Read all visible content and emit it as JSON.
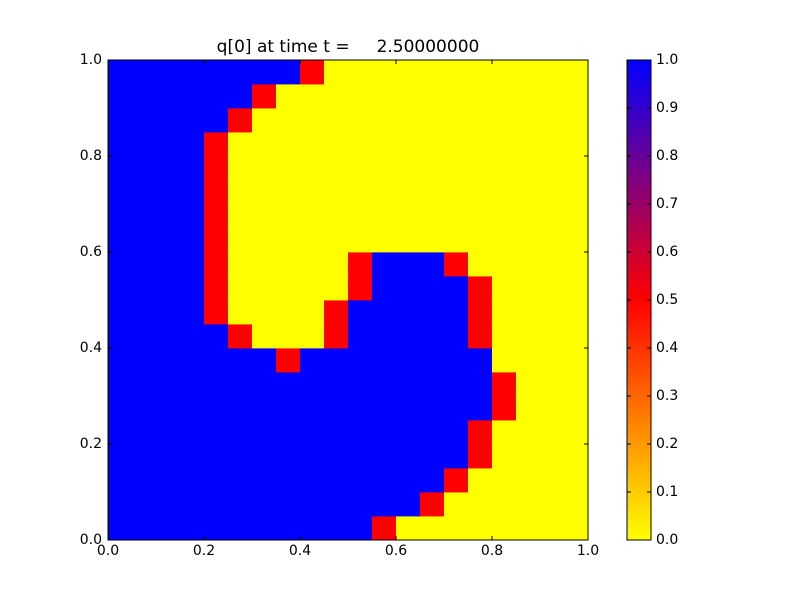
{
  "chart_data": {
    "type": "heatmap",
    "title": "q[0] at time t =     2.50000000",
    "xlim": [
      0,
      1
    ],
    "ylim": [
      0,
      1
    ],
    "xticks": [
      {
        "value": 0,
        "label": "0.0"
      },
      0.2,
      0.4,
      0.6,
      0.8,
      {
        "value": 1,
        "label": "1.0"
      }
    ],
    "yticks": [
      {
        "value": 0,
        "label": "0.0"
      },
      0.2,
      0.4,
      0.6,
      0.8,
      {
        "value": 1,
        "label": "1.0"
      }
    ],
    "clim": [
      0,
      1
    ],
    "colorbar_ticks": [
      {
        "value": 0,
        "label": "0.0"
      },
      0.1,
      0.2,
      0.3,
      0.4,
      0.5,
      0.6,
      0.7,
      0.8,
      0.9,
      {
        "value": 1,
        "label": "1.0"
      }
    ],
    "colormap": [
      {
        "value": 0,
        "color": "#ffff00"
      },
      {
        "value": 0.5,
        "color": "#ff0000"
      },
      {
        "value": 1,
        "color": "#0000ff"
      }
    ],
    "z": [
      [
        1,
        1,
        1,
        1,
        1,
        1,
        1,
        1,
        1,
        1,
        1,
        0.5,
        0,
        0,
        0,
        0,
        0,
        0,
        0,
        0
      ],
      [
        1,
        1,
        1,
        1,
        1,
        1,
        1,
        1,
        1,
        1,
        1,
        1,
        1,
        0.5,
        0,
        0,
        0,
        0,
        0,
        0
      ],
      [
        1,
        1,
        1,
        1,
        1,
        1,
        1,
        1,
        1,
        1,
        1,
        1,
        1,
        1,
        0.5,
        0,
        0,
        0,
        0,
        0
      ],
      [
        1,
        1,
        1,
        1,
        1,
        1,
        1,
        1,
        1,
        1,
        1,
        1,
        1,
        1,
        1,
        0.5,
        0,
        0,
        0,
        0
      ],
      [
        1,
        1,
        1,
        1,
        1,
        1,
        1,
        1,
        1,
        1,
        1,
        1,
        1,
        1,
        1,
        0.5,
        0,
        0,
        0,
        0
      ],
      [
        1,
        1,
        1,
        1,
        1,
        1,
        1,
        1,
        1,
        1,
        1,
        1,
        1,
        1,
        1,
        1,
        0.5,
        0,
        0,
        0
      ],
      [
        1,
        1,
        1,
        1,
        1,
        1,
        1,
        1,
        1,
        1,
        1,
        1,
        1,
        1,
        1,
        1,
        0.5,
        0,
        0,
        0
      ],
      [
        1,
        1,
        1,
        1,
        1,
        1,
        1,
        0.5,
        1,
        1,
        1,
        1,
        1,
        1,
        1,
        1,
        0,
        0,
        0,
        0
      ],
      [
        1,
        1,
        1,
        1,
        1,
        0.5,
        0,
        0,
        0,
        0.5,
        1,
        1,
        1,
        1,
        1,
        0.5,
        0,
        0,
        0,
        0
      ],
      [
        1,
        1,
        1,
        1,
        0.5,
        0,
        0,
        0,
        0,
        0.5,
        1,
        1,
        1,
        1,
        1,
        0.5,
        0,
        0,
        0,
        0
      ],
      [
        1,
        1,
        1,
        1,
        0.5,
        0,
        0,
        0,
        0,
        0,
        0.5,
        1,
        1,
        1,
        1,
        0.5,
        0,
        0,
        0,
        0
      ],
      [
        1,
        1,
        1,
        1,
        0.5,
        0,
        0,
        0,
        0,
        0,
        0.5,
        1,
        1,
        1,
        0.5,
        0,
        0,
        0,
        0,
        0
      ],
      [
        1,
        1,
        1,
        1,
        0.5,
        0,
        0,
        0,
        0,
        0,
        0,
        0,
        0,
        0,
        0,
        0,
        0,
        0,
        0,
        0
      ],
      [
        1,
        1,
        1,
        1,
        0.5,
        0,
        0,
        0,
        0,
        0,
        0,
        0,
        0,
        0,
        0,
        0,
        0,
        0,
        0,
        0
      ],
      [
        1,
        1,
        1,
        1,
        0.5,
        0,
        0,
        0,
        0,
        0,
        0,
        0,
        0,
        0,
        0,
        0,
        0,
        0,
        0,
        0
      ],
      [
        1,
        1,
        1,
        1,
        0.5,
        0,
        0,
        0,
        0,
        0,
        0,
        0,
        0,
        0,
        0,
        0,
        0,
        0,
        0,
        0
      ],
      [
        1,
        1,
        1,
        1,
        0.5,
        0,
        0,
        0,
        0,
        0,
        0,
        0,
        0,
        0,
        0,
        0,
        0,
        0,
        0,
        0
      ],
      [
        1,
        1,
        1,
        1,
        1,
        0.5,
        0,
        0,
        0,
        0,
        0,
        0,
        0,
        0,
        0,
        0,
        0,
        0,
        0,
        0
      ],
      [
        1,
        1,
        1,
        1,
        1,
        1,
        0.5,
        0,
        0,
        0,
        0,
        0,
        0,
        0,
        0,
        0,
        0,
        0,
        0,
        0
      ],
      [
        1,
        1,
        1,
        1,
        1,
        1,
        1,
        1,
        0.5,
        0,
        0,
        0,
        0,
        0,
        0,
        0,
        0,
        0,
        0,
        0
      ]
    ]
  }
}
